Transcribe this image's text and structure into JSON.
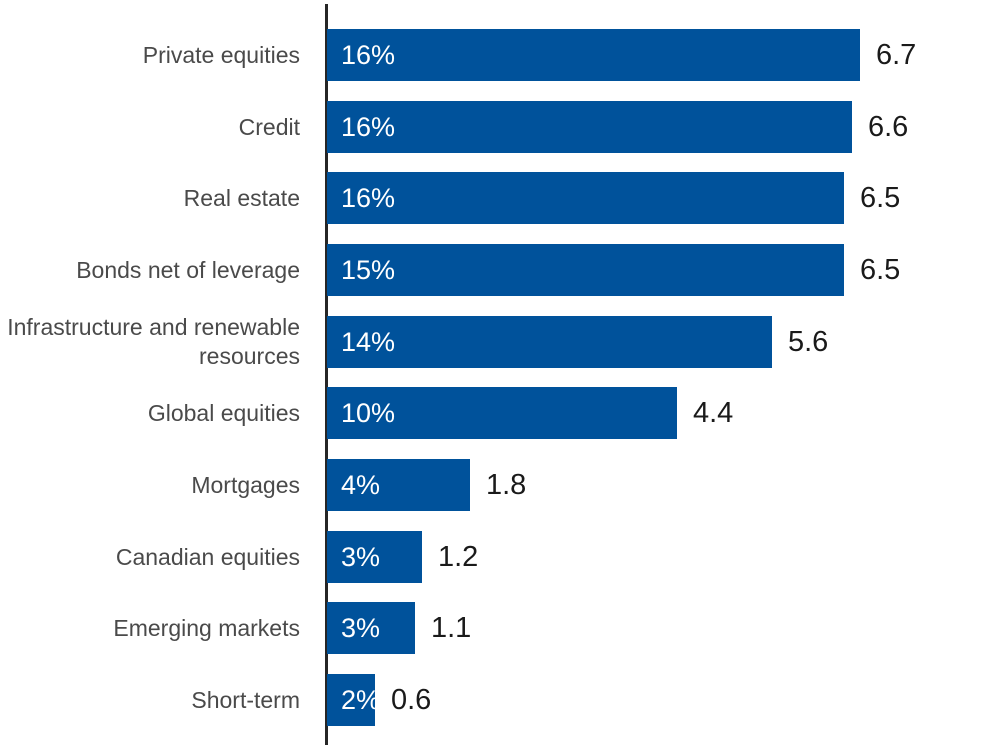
{
  "chart_data": {
    "type": "bar",
    "orientation": "horizontal",
    "title": "",
    "xlabel": "",
    "ylabel": "",
    "grid": false,
    "legend": false,
    "xlim": [
      0,
      6.7
    ],
    "value_label_position": "end-of-bar",
    "percent_label_position": "inside-bar-start",
    "bar_color": "#00529b",
    "category_label_color": "#4a4a4a",
    "value_label_color": "#1a1a1a",
    "axis_line_color": "#262626",
    "categories": [
      "Private equities",
      "Credit",
      "Real estate",
      "Bonds net of leverage",
      "Infrastructure and renewable resources",
      "Global equities",
      "Mortgages",
      "Canadian equities",
      "Emerging markets",
      "Short-term"
    ],
    "series": [
      {
        "name": "percent",
        "values": [
          16,
          16,
          16,
          15,
          14,
          10,
          4,
          3,
          3,
          2
        ]
      },
      {
        "name": "amount",
        "values": [
          6.7,
          6.6,
          6.5,
          6.5,
          5.6,
          4.4,
          1.8,
          1.2,
          1.1,
          0.6
        ]
      }
    ],
    "rows": [
      {
        "category": "Private equities",
        "pct_label": "16%",
        "value": 6.7,
        "value_label": "6.7"
      },
      {
        "category": "Credit",
        "pct_label": "16%",
        "value": 6.6,
        "value_label": "6.6"
      },
      {
        "category": "Real estate",
        "pct_label": "16%",
        "value": 6.5,
        "value_label": "6.5"
      },
      {
        "category": "Bonds net of leverage",
        "pct_label": "15%",
        "value": 6.5,
        "value_label": "6.5"
      },
      {
        "category": "Infrastructure and renewable resources",
        "pct_label": "14%",
        "value": 5.6,
        "value_label": "5.6"
      },
      {
        "category": "Global equities",
        "pct_label": "10%",
        "value": 4.4,
        "value_label": "4.4"
      },
      {
        "category": "Mortgages",
        "pct_label": "4%",
        "value": 1.8,
        "value_label": "1.8"
      },
      {
        "category": "Canadian equities",
        "pct_label": "3%",
        "value": 1.2,
        "value_label": "1.2"
      },
      {
        "category": "Emerging markets",
        "pct_label": "3%",
        "value": 1.1,
        "value_label": "1.1"
      },
      {
        "category": "Short-term",
        "pct_label": "2%",
        "value": 0.6,
        "value_label": "0.6"
      }
    ]
  }
}
